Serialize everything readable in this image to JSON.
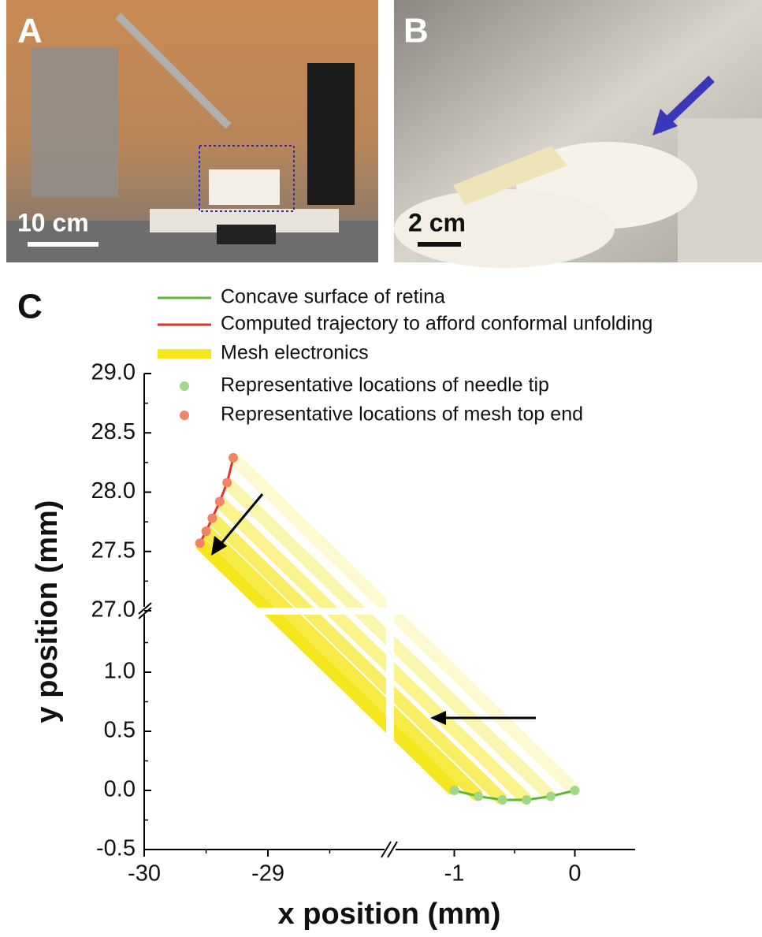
{
  "panels": [
    {
      "label": "A",
      "scale_bar": "10 cm"
    },
    {
      "label": "B",
      "scale_bar": "2 cm"
    }
  ],
  "chart_data": {
    "type": "line",
    "panel_label": "C",
    "x_label": "x position (mm)",
    "y_label": "y position (mm)",
    "x_segments": [
      {
        "xlim": [
          -30,
          -28
        ],
        "xticks": [
          -30,
          -29
        ]
      },
      {
        "xlim": [
          -1.5,
          0.5
        ],
        "xticks": [
          -1,
          0
        ]
      }
    ],
    "y_segments": [
      {
        "ylim": [
          -0.5,
          1.5
        ],
        "yticks": [
          -0.5,
          {
            "value": 0,
            "label": "0.0"
          },
          0.5,
          {
            "value": 1,
            "label": "1.0"
          }
        ]
      },
      {
        "ylim": [
          27,
          29
        ],
        "yticks": [
          {
            "value": 27,
            "label": "27.0"
          },
          27.5,
          {
            "value": 28,
            "label": "28.0"
          },
          28.5,
          {
            "value": 29,
            "label": "29.0"
          }
        ]
      }
    ],
    "series": [
      {
        "name": "Concave surface of retina",
        "color": "#5cb836",
        "style": "line",
        "x": [
          -1,
          -0.8,
          -0.6,
          -0.4,
          -0.2,
          0
        ],
        "y": [
          0,
          -0.05,
          -0.08,
          -0.08,
          -0.05,
          0
        ]
      },
      {
        "name": "Computed trajectory to afford conformal unfolding",
        "color": "#e53228",
        "style": "line",
        "x": [
          -29.55,
          -29.5,
          -29.45,
          -29.39,
          -29.33,
          -29.28
        ],
        "y": [
          27.57,
          27.67,
          27.78,
          27.92,
          28.08,
          28.29
        ]
      },
      {
        "name": "Mesh electronics",
        "color": "#f5e61e",
        "style": "band"
      },
      {
        "name": "Representative locations of needle tip",
        "color": "#9fd78b",
        "style": "marker",
        "x": [
          -1,
          -0.8,
          -0.6,
          -0.4,
          -0.2,
          0
        ],
        "y": [
          0,
          -0.05,
          -0.08,
          -0.08,
          -0.05,
          0
        ]
      },
      {
        "name": "Representative locations of mesh top end",
        "color": "#f08464",
        "style": "marker",
        "x": [
          -29.55,
          -29.5,
          -29.45,
          -29.39,
          -29.33,
          -29.28
        ],
        "y": [
          27.57,
          27.67,
          27.78,
          27.92,
          28.08,
          28.29
        ]
      }
    ]
  }
}
